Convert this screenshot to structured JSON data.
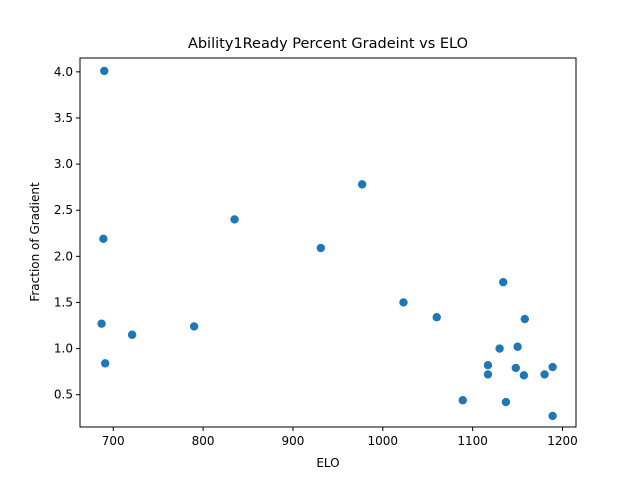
{
  "chart_data": {
    "type": "scatter",
    "title": "Ability1Ready Percent Gradeint vs ELO",
    "xlabel": "ELO",
    "ylabel": "Fraction of Gradient",
    "xlim": [
      663,
      1215
    ],
    "ylim": [
      0.15,
      4.15
    ],
    "xticks": [
      700,
      800,
      900,
      1000,
      1100,
      1200
    ],
    "yticks": [
      0.5,
      1.0,
      1.5,
      2.0,
      2.5,
      3.0,
      3.5,
      4.0
    ],
    "xtick_labels": [
      "700",
      "800",
      "900",
      "1000",
      "1100",
      "1200"
    ],
    "ytick_labels": [
      "0.5",
      "1.0",
      "1.5",
      "2.0",
      "2.5",
      "3.0",
      "3.5",
      "4.0"
    ],
    "grid": false,
    "marker_color": "#1f77b4",
    "series": [
      {
        "points": [
          {
            "x": 690,
            "y": 4.01
          },
          {
            "x": 689,
            "y": 2.19
          },
          {
            "x": 687,
            "y": 1.27
          },
          {
            "x": 691,
            "y": 0.84
          },
          {
            "x": 721,
            "y": 1.15
          },
          {
            "x": 790,
            "y": 1.24
          },
          {
            "x": 835,
            "y": 2.4
          },
          {
            "x": 931,
            "y": 2.09
          },
          {
            "x": 977,
            "y": 2.78
          },
          {
            "x": 1023,
            "y": 1.5
          },
          {
            "x": 1060,
            "y": 1.34
          },
          {
            "x": 1089,
            "y": 0.44
          },
          {
            "x": 1117,
            "y": 0.82
          },
          {
            "x": 1117,
            "y": 0.72
          },
          {
            "x": 1130,
            "y": 1.0
          },
          {
            "x": 1134,
            "y": 1.72
          },
          {
            "x": 1137,
            "y": 0.42
          },
          {
            "x": 1148,
            "y": 0.79
          },
          {
            "x": 1150,
            "y": 1.02
          },
          {
            "x": 1157,
            "y": 0.71
          },
          {
            "x": 1158,
            "y": 1.32
          },
          {
            "x": 1180,
            "y": 0.72
          },
          {
            "x": 1189,
            "y": 0.8
          },
          {
            "x": 1189,
            "y": 0.27
          }
        ]
      }
    ]
  }
}
